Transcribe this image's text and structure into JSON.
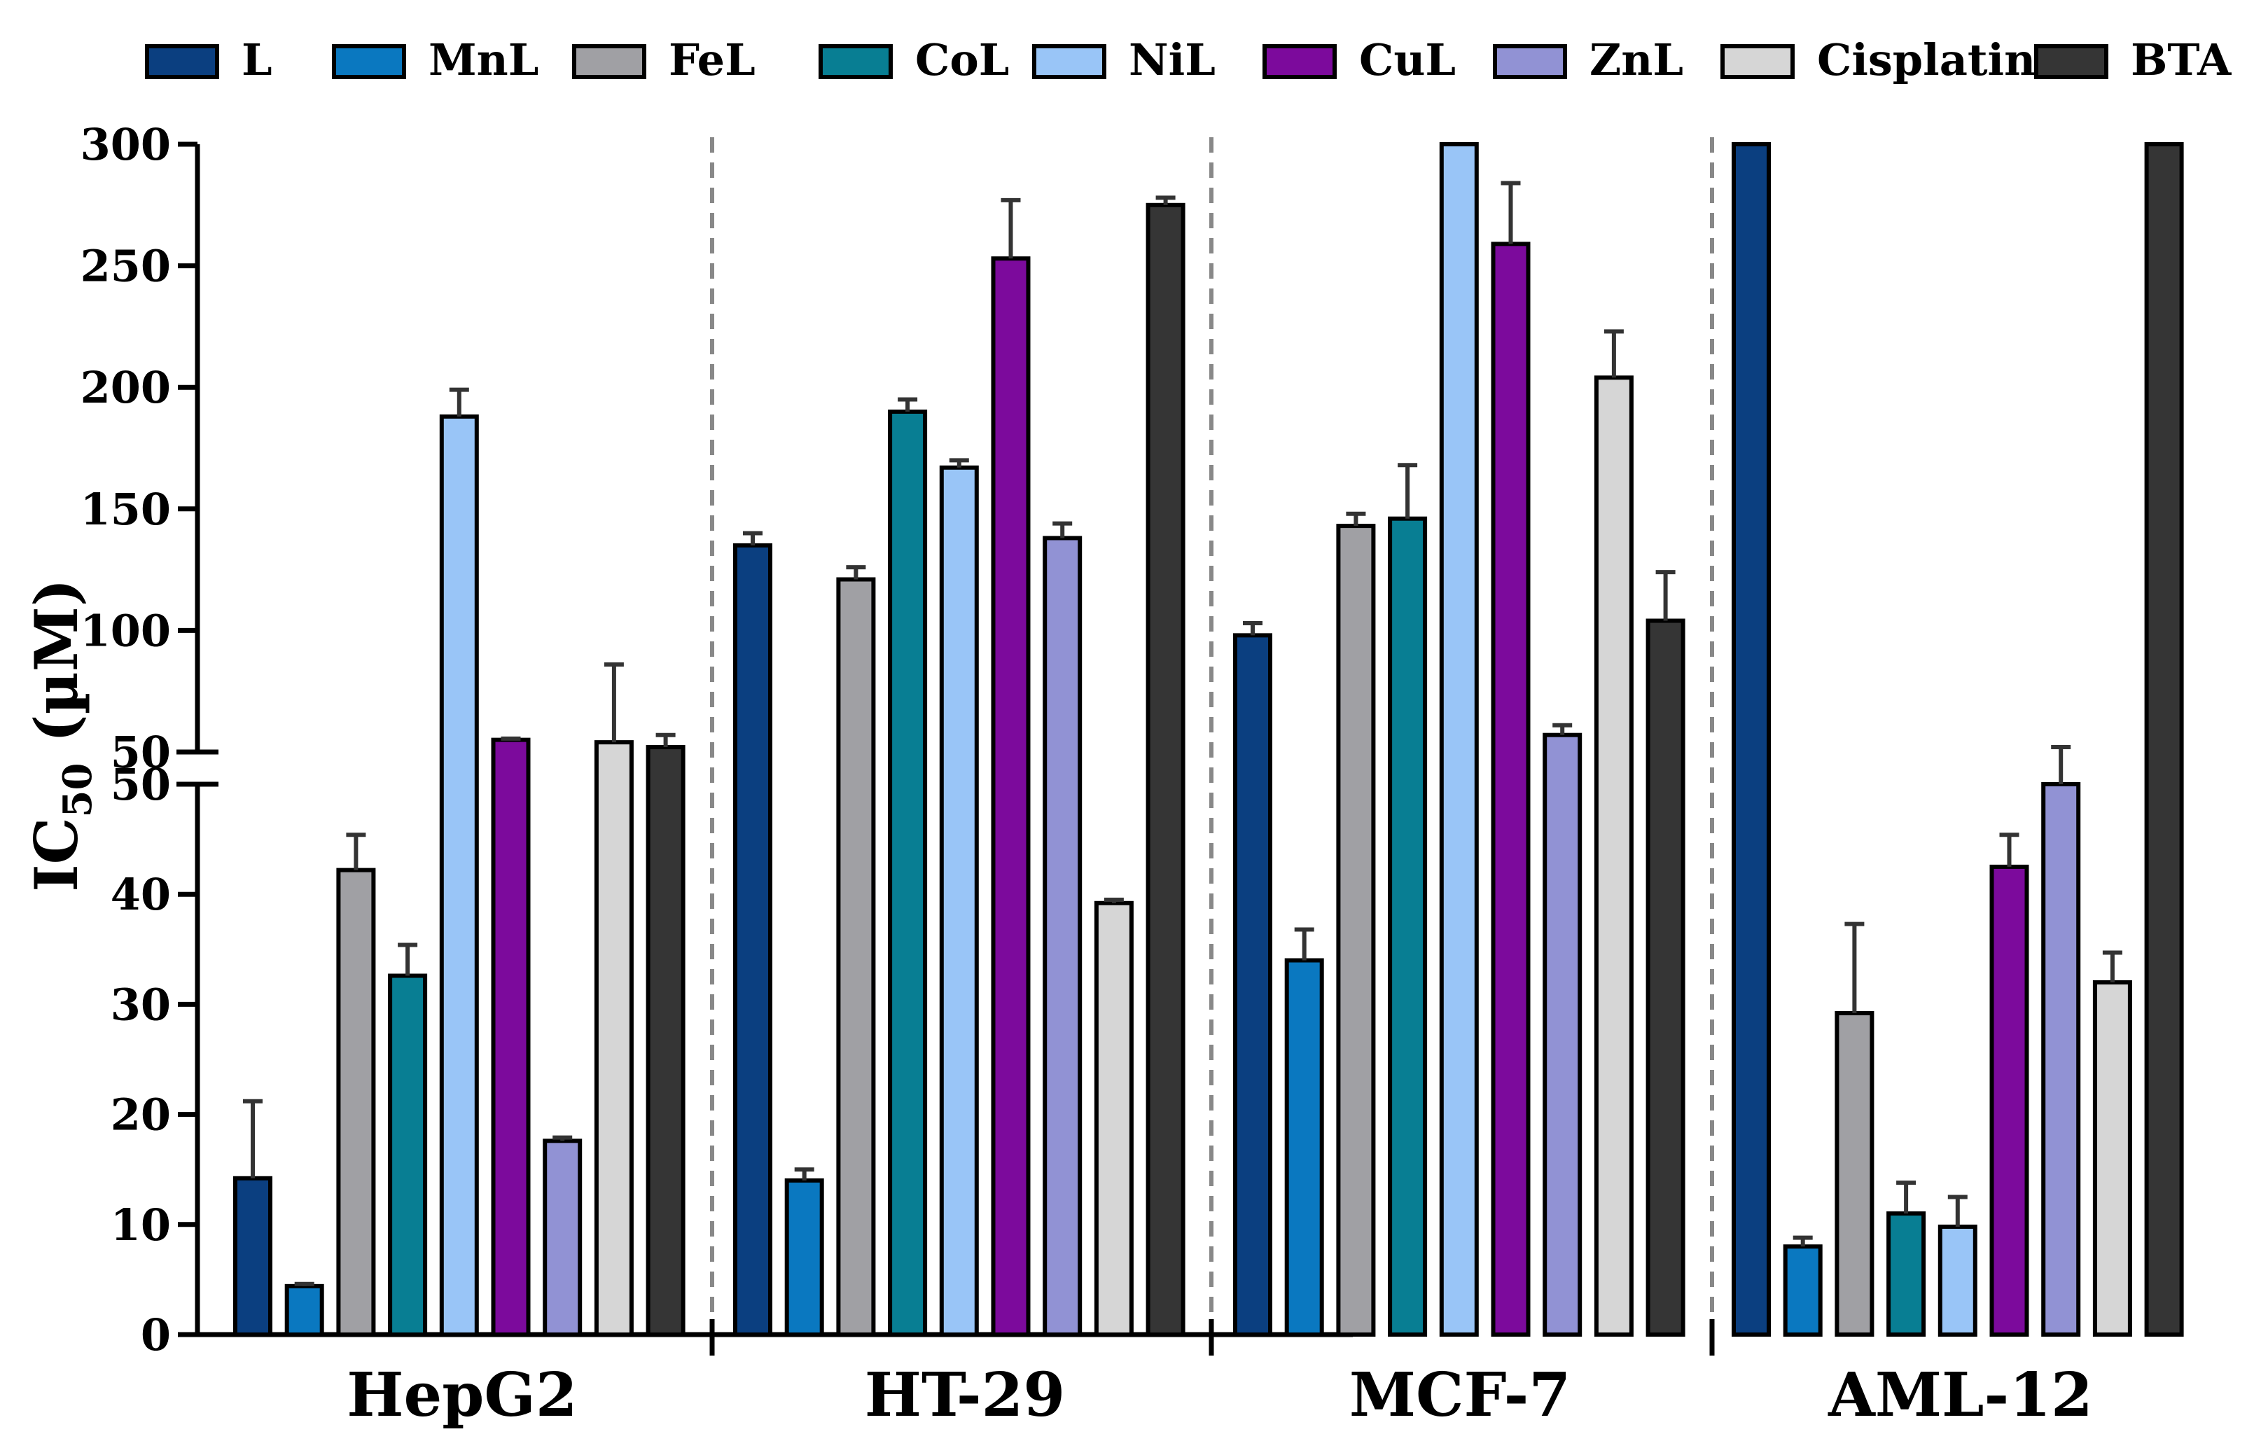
{
  "chart_data": {
    "type": "bar",
    "title": "",
    "xlabel": "",
    "ylabel": {
      "main": "IC",
      "sub": "50",
      "unit": " (µM)"
    },
    "categories": [
      "HepG2",
      "HT-29",
      "MCF-7",
      "AML-12"
    ],
    "axis_break": {
      "lower_range": [
        0,
        50
      ],
      "upper_range": [
        50,
        300
      ]
    },
    "y_ticks_lower": [
      0,
      10,
      20,
      30,
      40,
      50
    ],
    "y_ticks_upper": [
      50,
      100,
      150,
      200,
      250,
      300
    ],
    "y_tick_labels_lower": [
      "0",
      "10",
      "20",
      "30",
      "40",
      "50"
    ],
    "y_tick_labels_upper": [
      "50",
      "100",
      "150",
      "200",
      "250",
      "300"
    ],
    "legend_position": "top",
    "grid": false,
    "series": [
      {
        "name": "L",
        "color": "#0b3f80",
        "values": [
          14.2,
          135,
          98,
          300
        ],
        "errors": [
          7.0,
          5,
          5,
          0
        ]
      },
      {
        "name": "MnL",
        "color": "#0a78c0",
        "values": [
          4.4,
          14,
          34,
          8
        ],
        "errors": [
          0.2,
          1,
          2.8,
          0.8
        ]
      },
      {
        "name": "FeL",
        "color": "#a0a0a4",
        "values": [
          42.2,
          121,
          143,
          29.2
        ],
        "errors": [
          3.2,
          5,
          5,
          8.1
        ]
      },
      {
        "name": "CoL",
        "color": "#087e93",
        "values": [
          32.6,
          190,
          146,
          11
        ],
        "errors": [
          2.8,
          5,
          22,
          2.8
        ]
      },
      {
        "name": "NiL",
        "color": "#99c5f7",
        "values": [
          188,
          167,
          300,
          9.8
        ],
        "errors": [
          11,
          3,
          0,
          2.7
        ]
      },
      {
        "name": "CuL",
        "color": "#7c0a9c",
        "values": [
          55,
          253,
          259,
          42.5
        ],
        "errors": [
          0.5,
          24,
          25,
          2.9
        ]
      },
      {
        "name": "ZnL",
        "color": "#9192d4",
        "values": [
          17.6,
          138,
          57,
          50
        ],
        "errors": [
          0.3,
          6,
          4,
          2
        ]
      },
      {
        "name": "Cisplatin",
        "color": "#d6d6d6",
        "values": [
          54,
          39.2,
          204,
          32
        ],
        "errors": [
          32,
          0.3,
          19,
          2.7
        ]
      },
      {
        "name": "BTA",
        "color": "#353535",
        "values": [
          52,
          275,
          104,
          300
        ],
        "errors": [
          5,
          3,
          20,
          0
        ]
      }
    ]
  }
}
